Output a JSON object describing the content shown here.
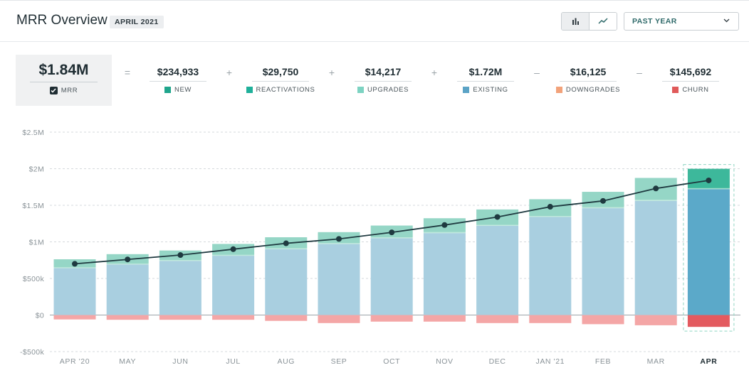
{
  "header": {
    "title": "MRR Overview",
    "period": "APRIL 2021",
    "range_label": "PAST YEAR"
  },
  "icons": {
    "bar_view": "bar-chart-icon",
    "line_view": "line-chart-icon",
    "dropdown": "chevron-down-icon",
    "check": "checkbox-icon"
  },
  "summary": {
    "mrr": {
      "value": "$1.84M",
      "label": "MRR"
    },
    "components": [
      {
        "op": "=",
        "value": "$234,933",
        "label": "NEW",
        "color": "#1fa58c"
      },
      {
        "op": "+",
        "value": "$29,750",
        "label": "REACTIVATIONS",
        "color": "#1fb09a"
      },
      {
        "op": "+",
        "value": "$14,217",
        "label": "UPGRADES",
        "color": "#7dd3c2"
      },
      {
        "op": "+",
        "value": "$1.72M",
        "label": "EXISTING",
        "color": "#5ba3c6"
      },
      {
        "op": "–",
        "value": "$16,125",
        "label": "DOWNGRADES",
        "color": "#f2a27a"
      },
      {
        "op": "–",
        "value": "$145,692",
        "label": "CHURN",
        "color": "#e05a5a"
      }
    ]
  },
  "chart_data": {
    "type": "bar",
    "categories": [
      "APR '20",
      "MAY",
      "JUN",
      "JUL",
      "AUG",
      "SEP",
      "OCT",
      "NOV",
      "DEC",
      "JAN '21",
      "FEB",
      "MAR",
      "APR"
    ],
    "y_ticks": [
      "$2.5M",
      "$2M",
      "$1.5M",
      "$1M",
      "$500k",
      "$0",
      "-$500k"
    ],
    "ylim": [
      -500000,
      2500000
    ],
    "grid": true,
    "highlighted_category": "APR",
    "series": [
      {
        "name": "EXISTING",
        "type": "bar",
        "values": [
          640000,
          690000,
          740000,
          810000,
          900000,
          970000,
          1050000,
          1120000,
          1220000,
          1340000,
          1460000,
          1560000,
          1720000
        ]
      },
      {
        "name": "UPGRADES",
        "type": "bar",
        "values": [
          12000,
          12000,
          12000,
          12000,
          13000,
          13000,
          13000,
          13000,
          13000,
          13000,
          14000,
          14000,
          14217
        ]
      },
      {
        "name": "NEW + REACTIVATIONS",
        "type": "bar",
        "values": [
          110000,
          130000,
          130000,
          150000,
          150000,
          150000,
          160000,
          190000,
          210000,
          230000,
          210000,
          300000,
          264683
        ]
      },
      {
        "name": "CHURN",
        "type": "bar",
        "values": [
          -60000,
          -65000,
          -65000,
          -65000,
          -80000,
          -110000,
          -90000,
          -90000,
          -110000,
          -110000,
          -125000,
          -140000,
          -161817
        ]
      },
      {
        "name": "MRR",
        "type": "line",
        "values": [
          700000,
          760000,
          820000,
          900000,
          980000,
          1040000,
          1130000,
          1230000,
          1340000,
          1480000,
          1560000,
          1730000,
          1840000
        ]
      }
    ],
    "colors": {
      "existing": "#a9cfe0",
      "upgrades": "#bfe8dc",
      "new": "#95d6c6",
      "churn": "#f4a6a6",
      "existing_current": "#5ba9c9",
      "upgrades_current": "#9fdccd",
      "new_current": "#3db89b",
      "churn_current": "#e35a5f",
      "line": "#1f3a40",
      "grid": "#d5d9dc",
      "highlight_border": "#8fd6c2"
    }
  }
}
